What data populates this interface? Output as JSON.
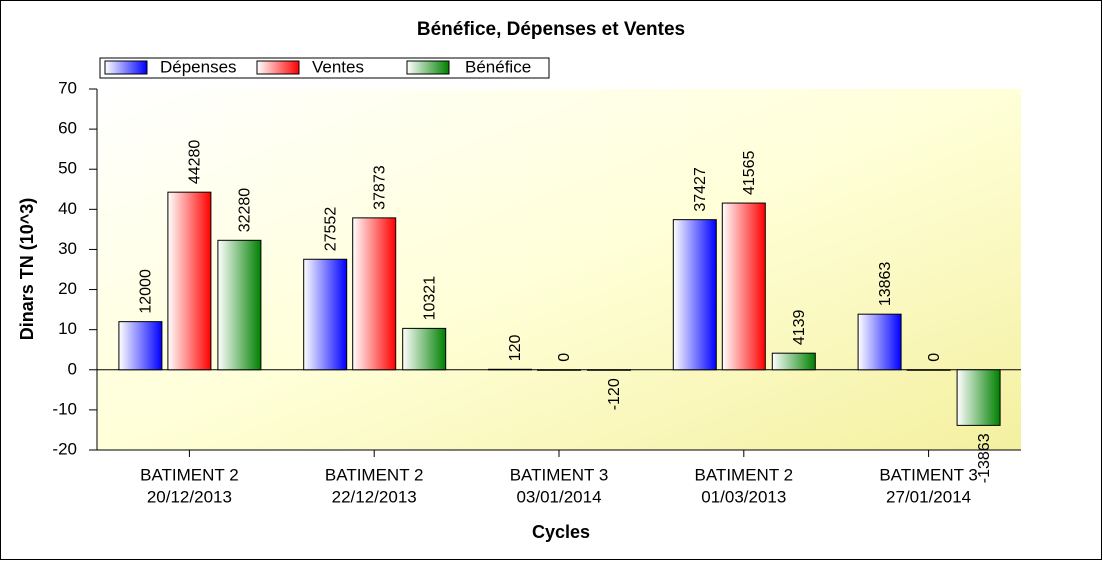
{
  "chart_data": {
    "type": "bar",
    "title": "Bénéfice, Dépenses et Ventes",
    "x_label": "Cycles",
    "y_label": "Dinars TN (10^3)",
    "categories": [
      [
        "BATIMENT 2",
        "20/12/2013"
      ],
      [
        "BATIMENT 2",
        "22/12/2013"
      ],
      [
        "BATIMENT 3",
        "03/01/2014"
      ],
      [
        "BATIMENT 2",
        "01/03/2013"
      ],
      [
        "BATIMENT 3",
        "27/01/2014"
      ]
    ],
    "series": [
      {
        "name": "Dépenses",
        "color": "#0000ff",
        "values": [
          12,
          27.552,
          0.12,
          37.427,
          13.863
        ],
        "value_labels": [
          "12000",
          "27552",
          "120",
          "37427",
          "13863"
        ]
      },
      {
        "name": "Ventes",
        "color": "#ff0000",
        "values": [
          44.28,
          37.873,
          0,
          41.565,
          0
        ],
        "value_labels": [
          "44280",
          "37873",
          "0",
          "41565",
          "0"
        ]
      },
      {
        "name": "Bénéfice",
        "color": "#008000",
        "values": [
          32.28,
          10.321,
          -0.12,
          4.139,
          -13.863
        ],
        "value_labels": [
          "32280",
          "10321",
          "-120",
          "4139",
          "-13863"
        ]
      }
    ],
    "ylim": [
      -20,
      70
    ],
    "yticks": [
      -20,
      -10,
      0,
      10,
      20,
      30,
      40,
      50,
      60,
      70
    ],
    "legend": "top"
  }
}
